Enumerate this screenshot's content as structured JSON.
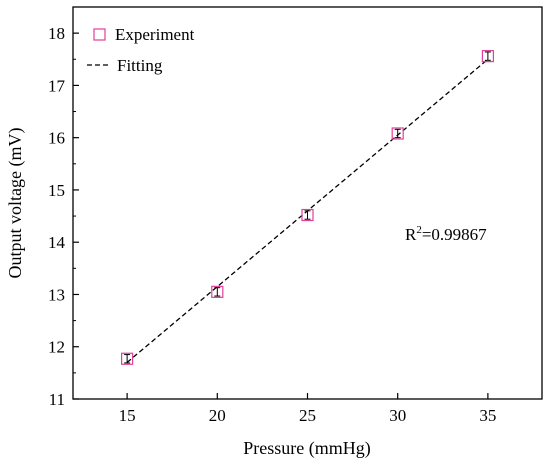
{
  "chart_data": {
    "type": "scatter",
    "xlabel": "Pressure (mmHg)",
    "ylabel": "Output voltage (mV)",
    "xlim": [
      12,
      38
    ],
    "ylim": [
      11,
      18.5
    ],
    "x_ticks": [
      15,
      20,
      25,
      30,
      35
    ],
    "y_ticks": [
      11,
      12,
      13,
      14,
      15,
      16,
      17,
      18
    ],
    "grid": false,
    "legend_position": "top-left",
    "series": [
      {
        "name": "Experiment",
        "kind": "marker",
        "marker": "open-square",
        "color": "#e0409a",
        "points": [
          {
            "x": 15,
            "y": 11.77,
            "err": 0.08
          },
          {
            "x": 20,
            "y": 13.05,
            "err": 0.08
          },
          {
            "x": 25,
            "y": 14.52,
            "err": 0.08
          },
          {
            "x": 30,
            "y": 16.08,
            "err": 0.08
          },
          {
            "x": 35,
            "y": 17.56,
            "err": 0.08
          }
        ]
      },
      {
        "name": "Fitting",
        "kind": "line",
        "style": "dashed",
        "color": "#000000",
        "points": [
          {
            "x": 15,
            "y": 11.7
          },
          {
            "x": 35,
            "y": 17.5
          }
        ]
      }
    ],
    "annotation": {
      "prefix": "R",
      "superscript": "2",
      "suffix": "=0.99867"
    }
  }
}
